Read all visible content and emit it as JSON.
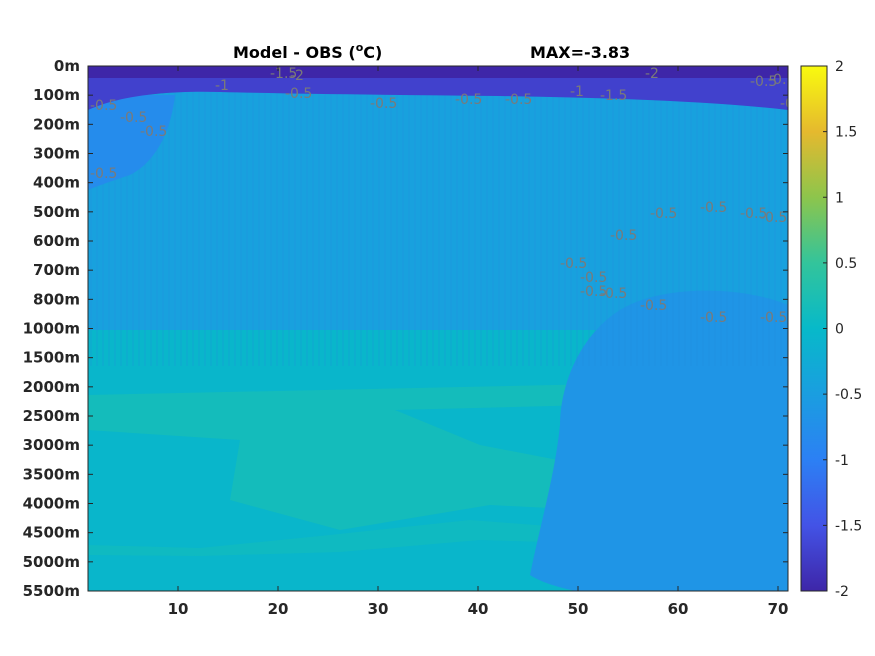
{
  "chart_data": {
    "type": "heatmap",
    "title_prefix": "Model - OBS (",
    "title_unit_sup": "o",
    "title_unit_suffix": "C)",
    "max_label": "MAX=-3.83",
    "xlim": [
      1,
      71
    ],
    "x_ticks": [
      10,
      20,
      30,
      40,
      50,
      60,
      70
    ],
    "y_tick_labels": [
      "0m",
      "100m",
      "200m",
      "300m",
      "400m",
      "500m",
      "600m",
      "700m",
      "800m",
      "1000m",
      "1500m",
      "2000m",
      "2500m",
      "3000m",
      "3500m",
      "4000m",
      "4500m",
      "5000m",
      "5500m"
    ],
    "colorbar": {
      "min": -2,
      "max": 2,
      "ticks": [
        2,
        1.5,
        1,
        0.5,
        0,
        -0.5,
        -1,
        -1.5,
        -2
      ],
      "colormap": "parula",
      "stops": [
        "#3e26a8",
        "#4353e6",
        "#2c80f4",
        "#1a9ee0",
        "#07b9c9",
        "#33c49b",
        "#8dc54c",
        "#e5b92e",
        "#f9fb0e"
      ]
    },
    "regions": [
      {
        "name": "surface-strong-negative",
        "value": -1.7
      },
      {
        "name": "upper-negative",
        "value": -0.8
      },
      {
        "name": "background-upper",
        "value": -0.45
      },
      {
        "name": "mid-negative-lobe",
        "value": -0.65
      },
      {
        "name": "deep-zero-band",
        "value": -0.05
      },
      {
        "name": "deep-positive",
        "value": 0.15
      }
    ],
    "contour_labels": [
      "-1",
      "-1.5",
      "-2",
      "-0.5",
      "-0.5",
      "-0.5",
      "-0.5",
      "-1",
      "-1.5",
      "-2",
      "-0.5",
      "-0.5",
      "-0.5",
      "-0.5",
      "-0.5",
      "-0.5",
      "-0.5",
      "-0.5",
      "-0.5",
      "-0.5",
      "-0.5",
      "-0.5",
      "-0.5",
      "-0.5",
      "-0.5",
      "-0.5",
      "-0.5",
      "-0.5",
      "-0.5"
    ]
  }
}
